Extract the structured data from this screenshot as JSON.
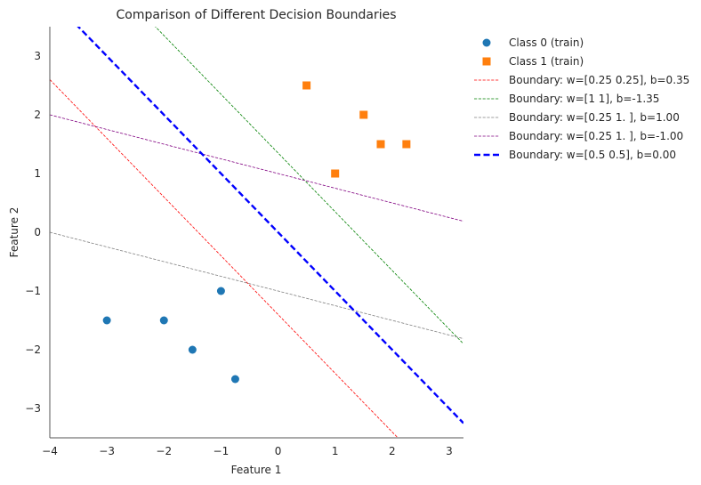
{
  "chart_data": {
    "type": "scatter",
    "title": "Comparison of Different Decision Boundaries",
    "xlabel": "Feature 1",
    "ylabel": "Feature 2",
    "xlim": [
      -4.0,
      3.25
    ],
    "ylim": [
      -3.5,
      3.5
    ],
    "xticks": [
      -4,
      -3,
      -2,
      -1,
      0,
      1,
      2,
      3
    ],
    "yticks": [
      -3,
      -2,
      -1,
      0,
      1,
      2,
      3
    ],
    "xtick_labels": [
      "−4",
      "−3",
      "−2",
      "−1",
      "0",
      "1",
      "2",
      "3"
    ],
    "ytick_labels": [
      "−3",
      "−2",
      "−1",
      "0",
      "1",
      "2",
      "3"
    ],
    "grid": false,
    "legend_position": "outside-right",
    "points": [
      {
        "name": "Class 0 (train)",
        "marker": "circle",
        "color": "#1f77b4",
        "x": [
          -3.0,
          -2.0,
          -1.0,
          -1.5,
          -0.75
        ],
        "y": [
          -1.5,
          -1.5,
          -1.0,
          -2.0,
          -2.5
        ]
      },
      {
        "name": "Class 1 (train)",
        "marker": "square",
        "color": "#ff7f0e",
        "x": [
          0.5,
          1.5,
          1.8,
          2.25,
          1.0
        ],
        "y": [
          2.5,
          2.0,
          1.5,
          1.5,
          1.0
        ]
      }
    ],
    "boundaries": [
      {
        "name": "Boundary: w=[0.25 0.25], b=0.35",
        "w": [
          0.25,
          0.25
        ],
        "b": 0.35,
        "color": "#ff0000",
        "style": "dashed-thin"
      },
      {
        "name": "Boundary: w=[1 1], b=-1.35",
        "w": [
          1,
          1
        ],
        "b": -1.35,
        "color": "#008000",
        "style": "dashed-thin"
      },
      {
        "name": "Boundary: w=[0.25 1.  ], b=1.00",
        "w": [
          0.25,
          1.0
        ],
        "b": 1.0,
        "color": "#808080",
        "style": "dashed-thin"
      },
      {
        "name": "Boundary: w=[0.25 1.  ], b=-1.00",
        "w": [
          0.25,
          1.0
        ],
        "b": -1.0,
        "color": "#800080",
        "style": "dashed-thin"
      },
      {
        "name": "Boundary: w=[0.5 0.5], b=0.00",
        "w": [
          0.5,
          0.5
        ],
        "b": 0.0,
        "color": "#0000ff",
        "style": "dashed-thick"
      }
    ]
  }
}
